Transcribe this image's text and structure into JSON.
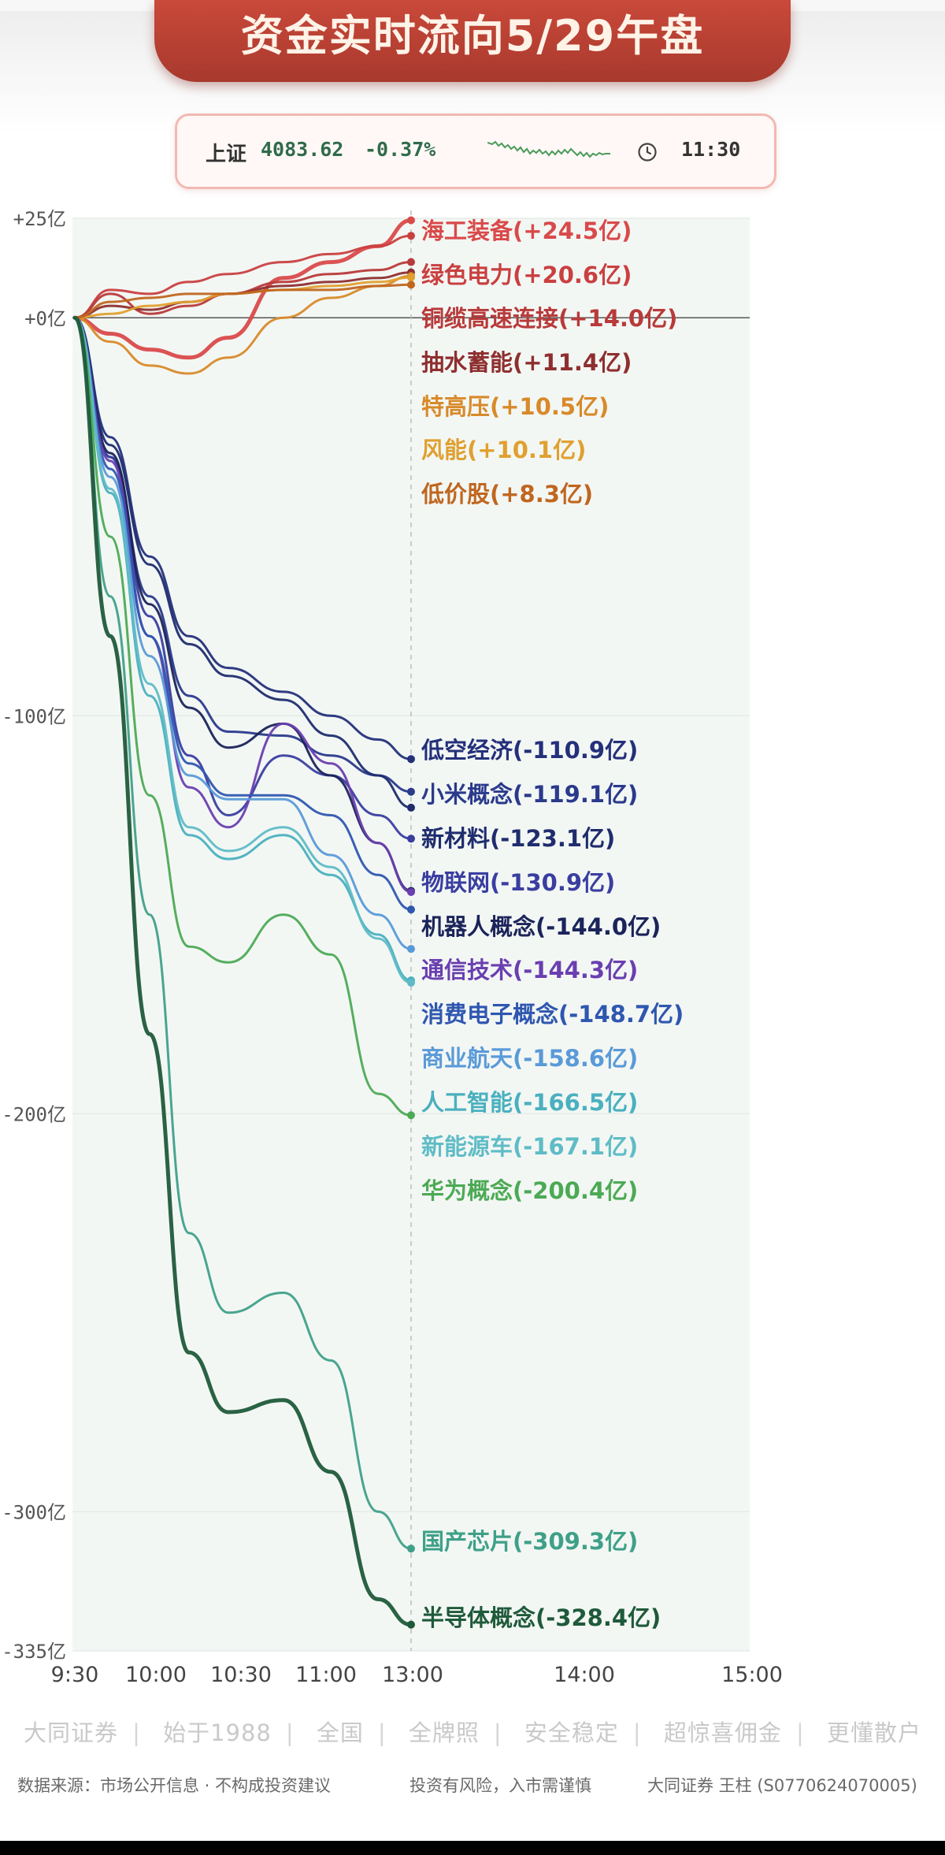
{
  "title": "资金实时流向5/29午盘",
  "index": {
    "name": "上证",
    "value": "4083.62",
    "change": "-0.37%",
    "time": "11:30"
  },
  "chart_data": {
    "type": "line",
    "yaxis": {
      "min": -335,
      "max": 25,
      "ticks": [
        {
          "value": 25,
          "label": "+25亿"
        },
        {
          "value": 0,
          "label": "+0亿"
        },
        {
          "value": -100,
          "label": "-100亿"
        },
        {
          "value": -200,
          "label": "-200亿"
        },
        {
          "value": -300,
          "label": "-300亿"
        },
        {
          "value": -335,
          "label": "-335亿"
        }
      ]
    },
    "xaxis": {
      "ticks": [
        "9:30",
        "10:00",
        "10:30",
        "11:00",
        "13:00",
        "14:00",
        "15:00"
      ]
    },
    "series": [
      {
        "name": "海工装备",
        "label": "海工装备(+24.5亿)",
        "color": "#d94a4a",
        "values": [
          0,
          -4,
          -8,
          -10,
          -5,
          10,
          14,
          18,
          24.5
        ]
      },
      {
        "name": "绿色电力",
        "label": "绿色电力(+20.6亿)",
        "color": "#c94040",
        "values": [
          0,
          7,
          6,
          9,
          11,
          14,
          16,
          18,
          20.6
        ]
      },
      {
        "name": "铜缆高速连接",
        "label": "铜缆高速连接(+14.0亿)",
        "color": "#b83a3a",
        "values": [
          0,
          6,
          1,
          3,
          6,
          9,
          11,
          12,
          14.0
        ]
      },
      {
        "name": "抽水蓄能",
        "label": "抽水蓄能(+11.4亿)",
        "color": "#8e2f2f",
        "values": [
          0,
          3,
          2,
          4,
          6,
          8,
          9,
          10,
          11.4
        ]
      },
      {
        "name": "特高压",
        "label": "特高压(+10.5亿)",
        "color": "#d88a2a",
        "values": [
          0,
          -6,
          -12,
          -14,
          -10,
          0,
          5,
          8,
          10.5
        ]
      },
      {
        "name": "风能",
        "label": "风能(+10.1亿)",
        "color": "#e0a030",
        "values": [
          0,
          1,
          3,
          4,
          6,
          7,
          8,
          9,
          10.1
        ]
      },
      {
        "name": "低价股",
        "label": "低价股(+8.3亿)",
        "color": "#c0661f",
        "values": [
          0,
          4,
          5,
          6,
          6,
          7,
          7,
          8,
          8.3
        ]
      },
      {
        "name": "低空经济",
        "label": "低空经济(-110.9亿)",
        "color": "#24307a",
        "values": [
          0,
          -30,
          -60,
          -80,
          -88,
          -94,
          -100,
          -106,
          -110.9
        ]
      },
      {
        "name": "小米概念",
        "label": "小米概念(-119.1亿)",
        "color": "#2a3a8c",
        "values": [
          0,
          -35,
          -70,
          -95,
          -104,
          -105,
          -110,
          -115,
          -119.1
        ]
      },
      {
        "name": "新材料",
        "label": "新材料(-123.1亿)",
        "color": "#1f2d6e",
        "values": [
          0,
          -32,
          -62,
          -82,
          -90,
          -96,
          -105,
          -115,
          -123.1
        ]
      },
      {
        "name": "物联网",
        "label": "物联网(-130.9亿)",
        "color": "#3a3ea0",
        "values": [
          0,
          -35,
          -75,
          -110,
          -125,
          -110,
          -115,
          -125,
          -130.9
        ]
      },
      {
        "name": "机器人概念",
        "label": "机器人概念(-144.0亿)",
        "color": "#1b245a",
        "values": [
          0,
          -34,
          -72,
          -98,
          -108,
          -102,
          -115,
          -132,
          -144.0
        ]
      },
      {
        "name": "通信技术",
        "label": "通信技术(-144.3亿)",
        "color": "#6a3fb0",
        "values": [
          0,
          -36,
          -80,
          -118,
          -128,
          -102,
          -112,
          -132,
          -144.3
        ]
      },
      {
        "name": "消费电子概念",
        "label": "消费电子概念(-148.7亿)",
        "color": "#2f57b0",
        "values": [
          0,
          -38,
          -80,
          -112,
          -120,
          -120,
          -125,
          -140,
          -148.7
        ]
      },
      {
        "name": "商业航天",
        "label": "商业航天(-158.6亿)",
        "color": "#5a9ad8",
        "values": [
          0,
          -40,
          -85,
          -115,
          -121,
          -121,
          -135,
          -150,
          -158.6
        ]
      },
      {
        "name": "人工智能",
        "label": "人工智能(-166.5亿)",
        "color": "#4ab0bf",
        "values": [
          0,
          -44,
          -95,
          -130,
          -136,
          -130,
          -140,
          -155,
          -166.5
        ]
      },
      {
        "name": "新能源车",
        "label": "新能源车(-167.1亿)",
        "color": "#5fbcc6",
        "values": [
          0,
          -43,
          -92,
          -128,
          -134,
          -128,
          -138,
          -156,
          -167.1
        ]
      },
      {
        "name": "华为概念",
        "label": "华为概念(-200.4亿)",
        "color": "#4caa55",
        "values": [
          0,
          -55,
          -120,
          -158,
          -162,
          -150,
          -160,
          -195,
          -200.4
        ]
      },
      {
        "name": "国产芯片",
        "label": "国产芯片(-309.3亿)",
        "color": "#3fa088",
        "values": [
          0,
          -70,
          -150,
          -230,
          -250,
          -245,
          -262,
          -300,
          -309.3
        ]
      },
      {
        "name": "半导体概念",
        "label": "半导体概念(-328.4亿)",
        "color": "#1f5a3a",
        "values": [
          0,
          -80,
          -180,
          -260,
          -275,
          -272,
          -290,
          -322,
          -328.4
        ]
      }
    ]
  },
  "footer": {
    "slogan": [
      "大同证券",
      "始于1988",
      "全国",
      "全牌照",
      "安全稳定",
      "超惊喜佣金",
      "更懂散户"
    ],
    "source": "数据来源：市场公开信息 · 不构成投资建议",
    "risk": "投资有风险，入市需谨慎",
    "author": "大同证券 王柱 (S0770624070005)"
  }
}
